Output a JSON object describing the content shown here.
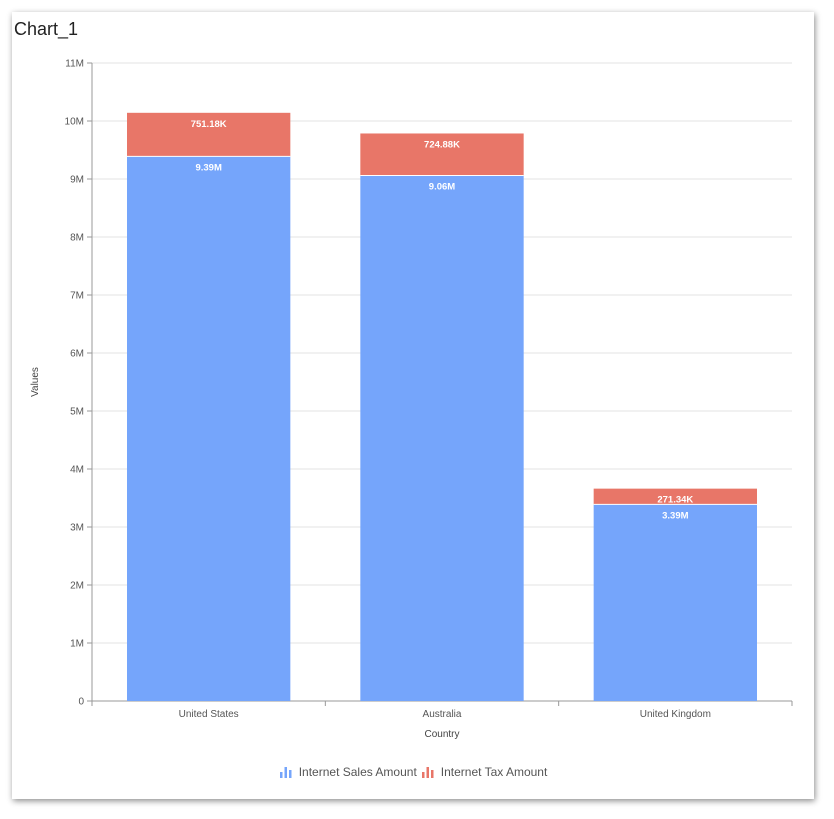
{
  "chart_title": "Chart_1",
  "chart_data": {
    "type": "bar",
    "stacked": true,
    "categories": [
      "United States",
      "Australia",
      "United Kingdom"
    ],
    "series": [
      {
        "name": "Internet Sales Amount",
        "color": "#75a5fb",
        "values": [
          9390000,
          9060000,
          3390000
        ],
        "labels": [
          "9.39M",
          "9.06M",
          "3.39M"
        ]
      },
      {
        "name": "Internet Tax Amount",
        "color": "#e87668",
        "values": [
          751180,
          724880,
          271340
        ],
        "labels": [
          "751.18K",
          "724.88K",
          "271.34K"
        ]
      }
    ],
    "xlabel": "Country",
    "ylabel": "Values",
    "ylim": [
      0,
      11000000
    ],
    "yticks": [
      0,
      1000000,
      2000000,
      3000000,
      4000000,
      5000000,
      6000000,
      7000000,
      8000000,
      9000000,
      10000000,
      11000000
    ],
    "ytick_labels": [
      "0",
      "1M",
      "2M",
      "3M",
      "4M",
      "5M",
      "6M",
      "7M",
      "8M",
      "9M",
      "10M",
      "11M"
    ],
    "grid": true,
    "legend_position": "bottom"
  }
}
